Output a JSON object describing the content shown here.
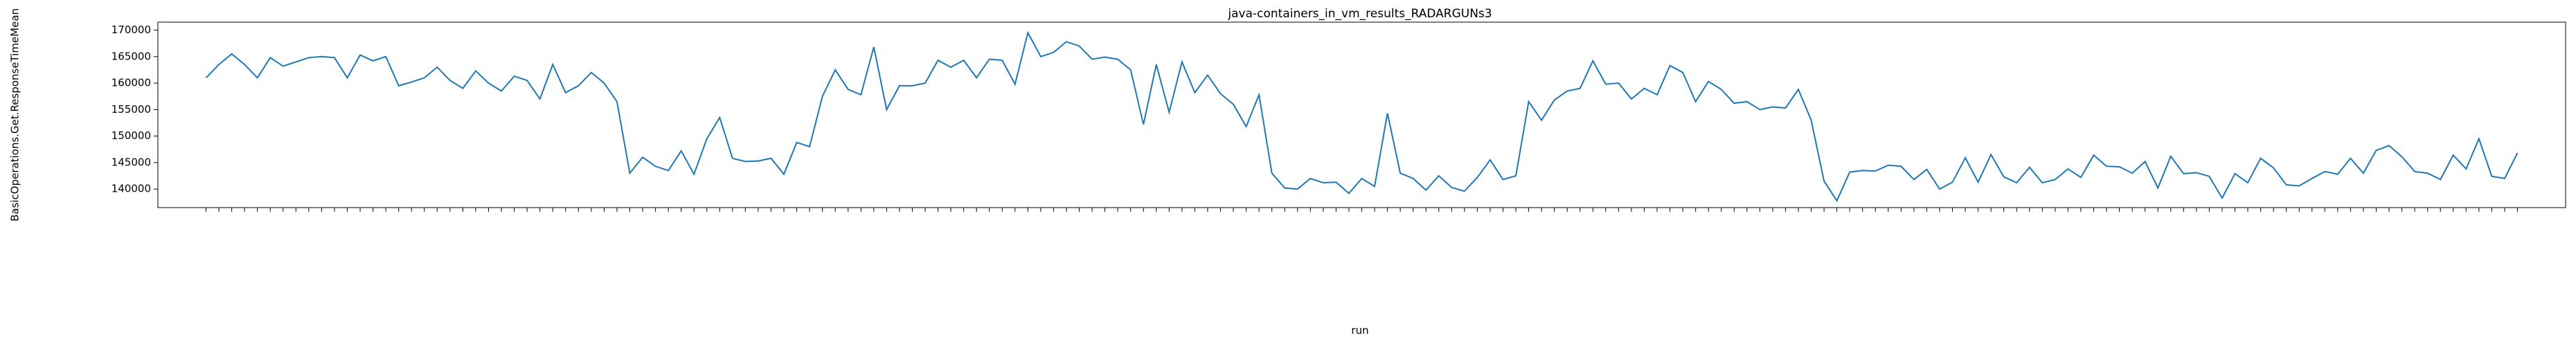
{
  "chart_data": {
    "type": "line",
    "title": "java-containers_in_vm_results_RADARGUNs3",
    "xlabel": "run",
    "ylabel": "BasicOperations.Get.ResponseTimeMean",
    "color": "#1f77b4",
    "categories": [
      null,
      null,
      null,
      null,
      null,
      null,
      null,
      null,
      null,
      null,
      null,
      null,
      null,
      null,
      null,
      null,
      null,
      null,
      null,
      null,
      null,
      null,
      null,
      null,
      null,
      null,
      null,
      null,
      null,
      null,
      null,
      null,
      null,
      null,
      null,
      null,
      null,
      null,
      null,
      null,
      null,
      null,
      null,
      null,
      null,
      null,
      null,
      null,
      null,
      null,
      null,
      null,
      null,
      null,
      null,
      null,
      null,
      null,
      null,
      null,
      null,
      null,
      null,
      null,
      null,
      null,
      null,
      null,
      null,
      null,
      null,
      null,
      null,
      null,
      null,
      null,
      null,
      null,
      null,
      null,
      null,
      null,
      null,
      null,
      null,
      null,
      null,
      null,
      null,
      null,
      null,
      null,
      null,
      null,
      null,
      null,
      null,
      null,
      null,
      null,
      null,
      null,
      null,
      null,
      null,
      null,
      null,
      null,
      null,
      null,
      null,
      null,
      null,
      null,
      null,
      null,
      null,
      null,
      null,
      null,
      null,
      null,
      null,
      null,
      null,
      null,
      null,
      null,
      null,
      null,
      null,
      null,
      null,
      null,
      null,
      null,
      null,
      null,
      null,
      null,
      null,
      null,
      null,
      null,
      null,
      null,
      null,
      null,
      null,
      null,
      null,
      null,
      null,
      null,
      null,
      null,
      null,
      null,
      null,
      null,
      null,
      null,
      null,
      null,
      null,
      null,
      null,
      null,
      null,
      null,
      null,
      null,
      null,
      null,
      null,
      null,
      null,
      null,
      null,
      null,
      null
    ],
    "values": [
      161000,
      163500,
      165500,
      163500,
      161000,
      164800,
      163200,
      164000,
      164800,
      165000,
      164800,
      161000,
      165300,
      164200,
      165000,
      159500,
      160200,
      161000,
      163000,
      160500,
      159000,
      162300,
      160000,
      158500,
      161300,
      160500,
      157000,
      163500,
      158200,
      159500,
      162000,
      160000,
      156500,
      143000,
      146000,
      144300,
      143500,
      147200,
      142800,
      149500,
      153500,
      145800,
      145200,
      145300,
      145800,
      142800,
      148800,
      148000,
      157500,
      162500,
      158800,
      157800,
      166800,
      155000,
      159500,
      159500,
      160000,
      164300,
      163000,
      164300,
      161000,
      164500,
      164300,
      159800,
      169500,
      165000,
      165800,
      167800,
      167000,
      164500,
      164900,
      164500,
      162500,
      152200,
      163500,
      154500,
      164000,
      158200,
      161500,
      158000,
      156000,
      151800,
      157800,
      143000,
      140200,
      140000,
      142000,
      141200,
      141300,
      139200,
      142000,
      140500,
      154300,
      143000,
      142000,
      139800,
      142500,
      140300,
      139600,
      142200,
      145500,
      141800,
      142500,
      156500,
      153000,
      156800,
      158500,
      159000,
      164200,
      159800,
      160000,
      157000,
      159000,
      157800,
      163300,
      162000,
      156500,
      160300,
      158800,
      156200,
      156500,
      155000,
      155500,
      155300,
      158800,
      153000,
      141500,
      137800,
      143200,
      143500,
      143400,
      144500,
      144300,
      141800,
      143700,
      140000,
      141300,
      145900,
      141300,
      146500,
      142300,
      141200,
      144100,
      141200,
      141800,
      143800,
      142200,
      146400,
      144300,
      144200,
      143000,
      145200,
      140200,
      146200,
      142900,
      143100,
      142400,
      138300,
      142900,
      141200,
      145800,
      144000,
      140800,
      140600,
      142000,
      143300,
      142800,
      145800,
      143000,
      147300,
      148200,
      146100,
      143300,
      143000,
      141800,
      146400,
      143800,
      149500,
      142400,
      142000,
      146800
    ],
    "ylim": [
      136500,
      171500
    ],
    "yticks": [
      140000,
      145000,
      150000,
      155000,
      160000,
      165000,
      170000
    ]
  }
}
